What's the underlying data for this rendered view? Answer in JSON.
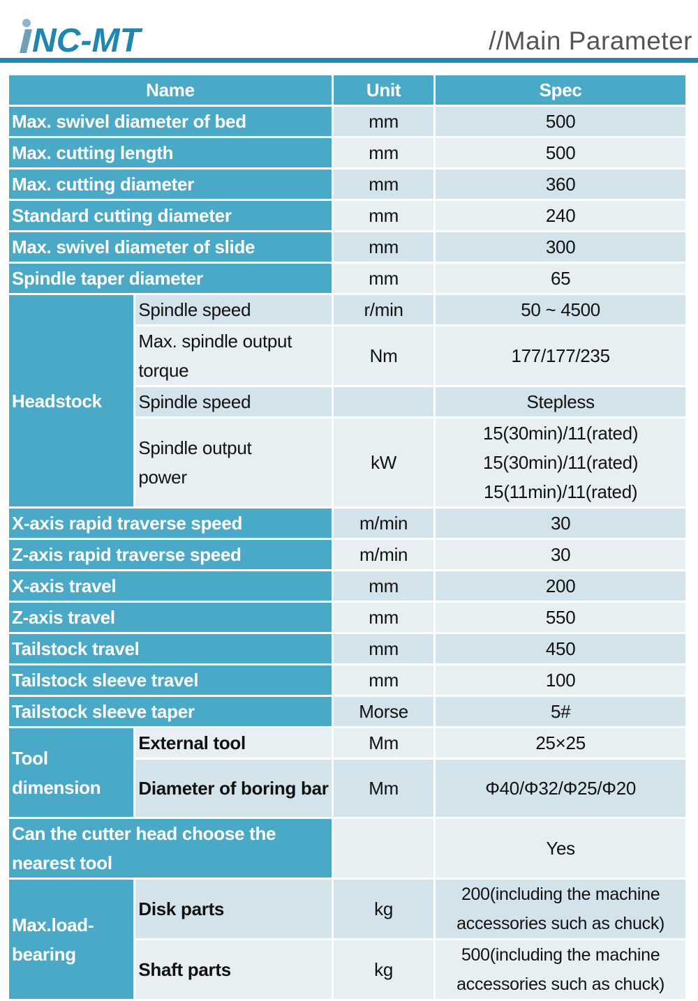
{
  "header": {
    "logo_text": "iNC-MT",
    "title": "//Main Parameter",
    "accent": "#1f86b1",
    "table_header_color": "#4aa9c6"
  },
  "columns": [
    "Name",
    "Unit",
    "Spec"
  ],
  "rows": [
    {
      "name": "Max. swivel diameter of bed",
      "unit": "mm",
      "spec": "500"
    },
    {
      "name": "Max. cutting length",
      "unit": "mm",
      "spec": "500"
    },
    {
      "name": "Max. cutting diameter",
      "unit": "mm",
      "spec": "360"
    },
    {
      "name": "Standard cutting diameter",
      "unit": "mm",
      "spec": "240"
    },
    {
      "name": "Max. swivel diameter of slide",
      "unit": "mm",
      "spec": "300"
    },
    {
      "name": "Spindle taper diameter",
      "unit": "mm",
      "spec": "65"
    }
  ],
  "headstock": {
    "group": "Headstock",
    "items": [
      {
        "name": "Spindle speed",
        "unit": "r/min",
        "spec": "50 ~ 4500"
      },
      {
        "name": "Max. spindle output torque",
        "unit": "Nm",
        "spec": "177/177/235"
      },
      {
        "name": "Spindle speed",
        "unit": "",
        "spec": "Stepless"
      },
      {
        "name": "Spindle output power",
        "unit": "kW",
        "spec": [
          "15(30min)/11(rated)",
          "15(30min)/11(rated)",
          "15(11min)/11(rated)"
        ]
      }
    ]
  },
  "rows2": [
    {
      "name": "X-axis rapid traverse speed",
      "unit": "m/min",
      "spec": "30"
    },
    {
      "name": "Z-axis rapid traverse speed",
      "unit": "m/min",
      "spec": "30"
    },
    {
      "name": "X-axis travel",
      "unit": "mm",
      "spec": "200"
    },
    {
      "name": "Z-axis travel",
      "unit": "mm",
      "spec": "550"
    },
    {
      "name": "Tailstock travel",
      "unit": "mm",
      "spec": "450"
    },
    {
      "name": "Tailstock sleeve travel",
      "unit": "mm",
      "spec": "100"
    },
    {
      "name": "Tailstock sleeve taper",
      "unit": "Morse",
      "spec": "5#"
    }
  ],
  "tool": {
    "group": "Tool dimension",
    "items": [
      {
        "name": "External tool",
        "unit": "Mm",
        "spec": "25×25"
      },
      {
        "name": "Diameter of boring bar",
        "unit": "Mm",
        "spec": "Φ40/Φ32/Φ25/Φ20"
      }
    ]
  },
  "cutter": {
    "name": "Can the cutter head choose the nearest tool",
    "unit": "",
    "spec": "Yes"
  },
  "load": {
    "group": "Max.load-bearing",
    "items": [
      {
        "name": "Disk parts",
        "unit": "kg",
        "spec": "200(including the machine accessories such as chuck)"
      },
      {
        "name": "Shaft parts",
        "unit": "kg",
        "spec": "500(including the machine accessories such as chuck)"
      }
    ]
  }
}
